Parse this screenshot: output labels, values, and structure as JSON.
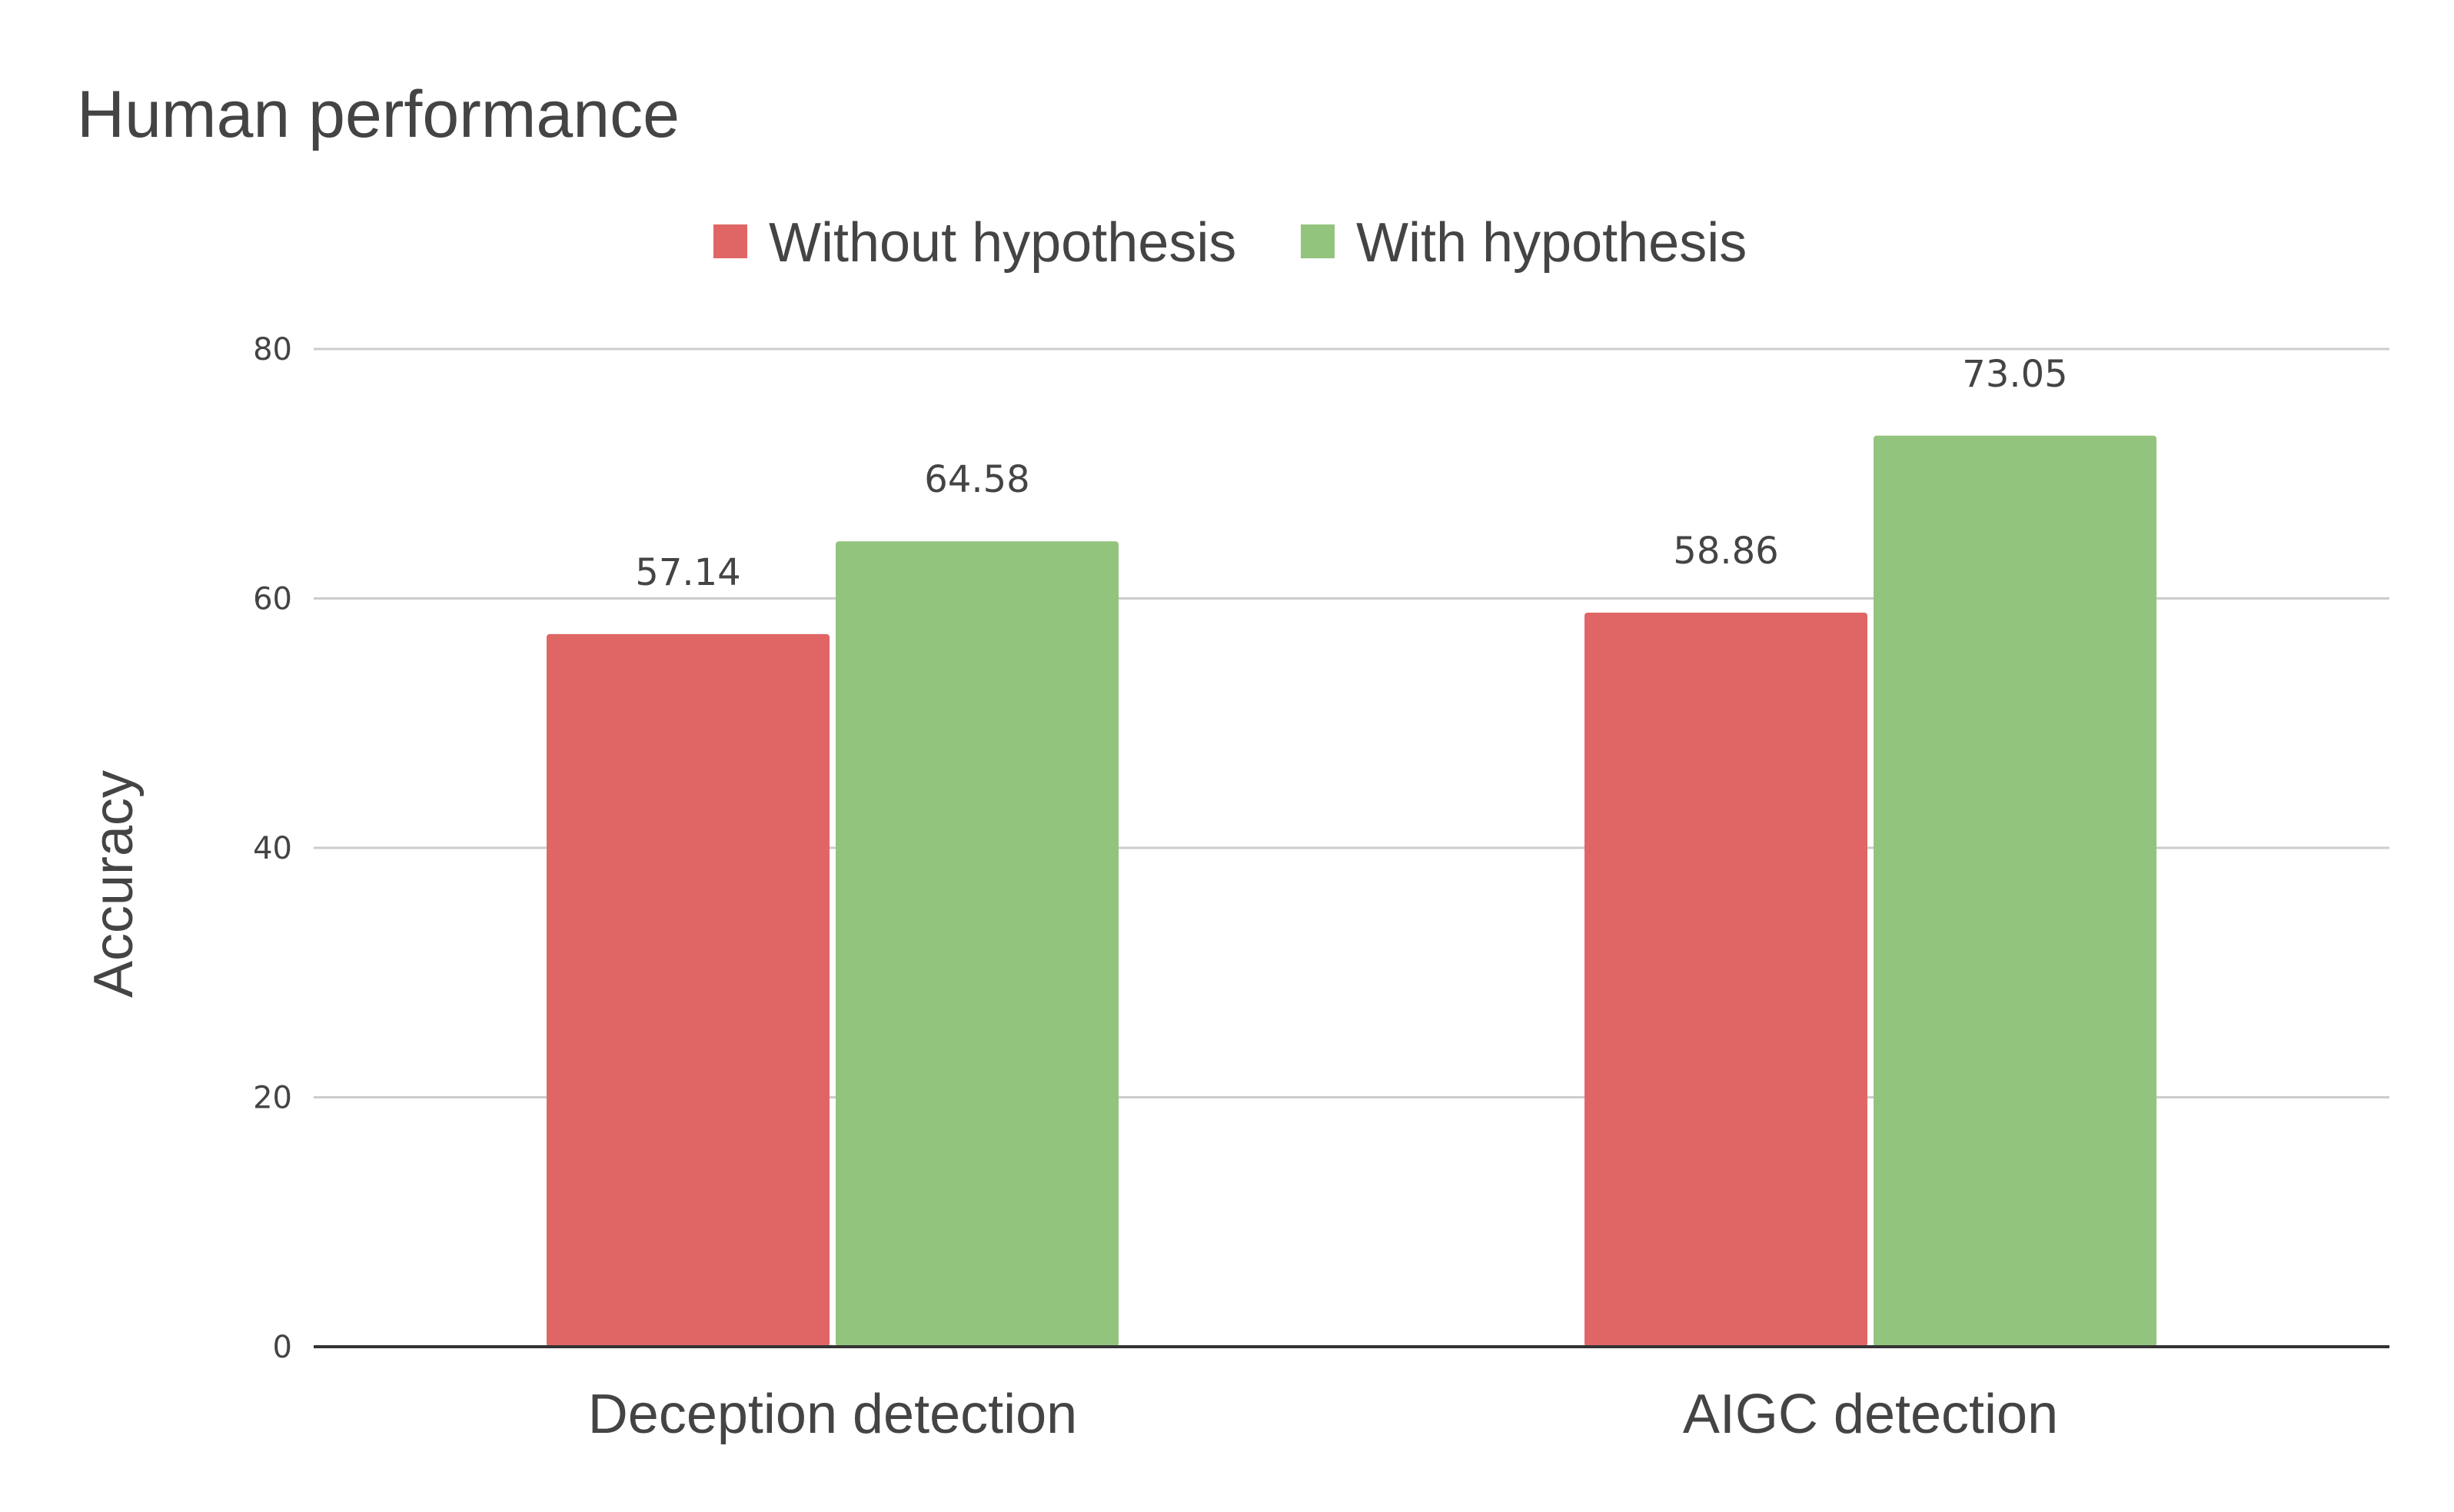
{
  "chart_data": {
    "type": "bar",
    "title": "Human performance",
    "xlabel": "",
    "ylabel": "Accuracy",
    "categories": [
      "Deception detection",
      "AIGC detection"
    ],
    "series": [
      {
        "name": "Without hypothesis",
        "color": "#e06666",
        "values": [
          57.14,
          58.86
        ]
      },
      {
        "name": "With hypothesis",
        "color": "#93c47d",
        "values": [
          64.58,
          73.05
        ]
      }
    ],
    "ylim": [
      0,
      80
    ],
    "yticks": [
      0,
      20,
      40,
      60,
      80
    ],
    "grid": true,
    "legend_position": "top"
  }
}
